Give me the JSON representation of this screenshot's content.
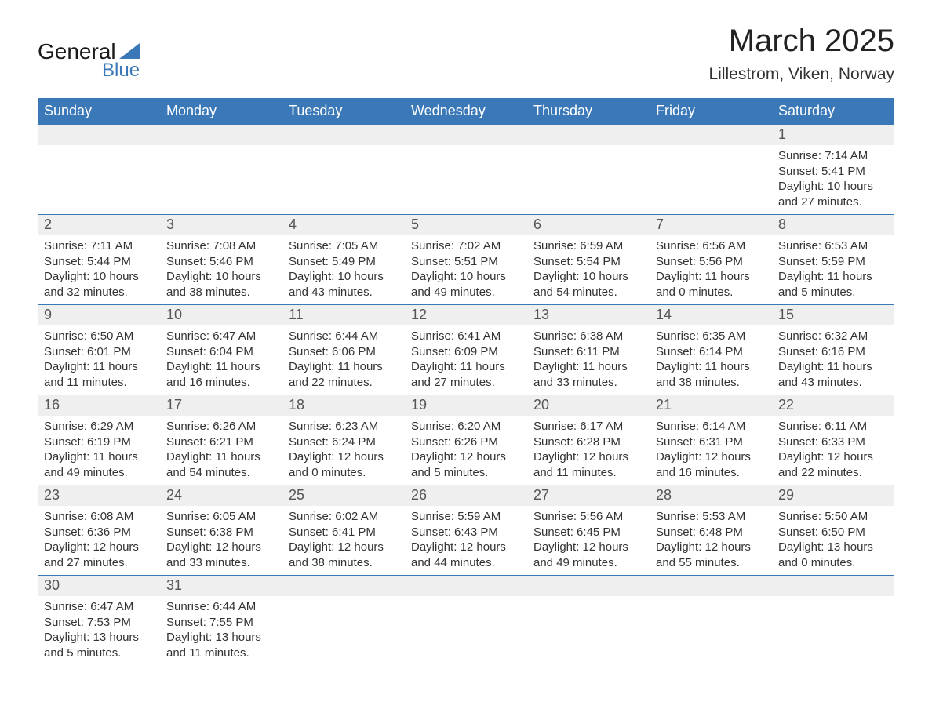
{
  "logo": {
    "text_top": "General",
    "text_bottom": "Blue",
    "accent_color": "#3a78b8"
  },
  "title": "March 2025",
  "location": "Lillestrom, Viken, Norway",
  "colors": {
    "header_bg": "#3a78b8",
    "header_text": "#ffffff",
    "daynum_bg": "#efefef",
    "daynum_text": "#555555",
    "body_text": "#333333",
    "row_border": "#3a78b8"
  },
  "weekdays": [
    "Sunday",
    "Monday",
    "Tuesday",
    "Wednesday",
    "Thursday",
    "Friday",
    "Saturday"
  ],
  "weeks": [
    [
      {
        "blank": true
      },
      {
        "blank": true
      },
      {
        "blank": true
      },
      {
        "blank": true
      },
      {
        "blank": true
      },
      {
        "blank": true
      },
      {
        "day": "1",
        "sunrise": "7:14 AM",
        "sunset": "5:41 PM",
        "daylight": "10 hours and 27 minutes."
      }
    ],
    [
      {
        "day": "2",
        "sunrise": "7:11 AM",
        "sunset": "5:44 PM",
        "daylight": "10 hours and 32 minutes."
      },
      {
        "day": "3",
        "sunrise": "7:08 AM",
        "sunset": "5:46 PM",
        "daylight": "10 hours and 38 minutes."
      },
      {
        "day": "4",
        "sunrise": "7:05 AM",
        "sunset": "5:49 PM",
        "daylight": "10 hours and 43 minutes."
      },
      {
        "day": "5",
        "sunrise": "7:02 AM",
        "sunset": "5:51 PM",
        "daylight": "10 hours and 49 minutes."
      },
      {
        "day": "6",
        "sunrise": "6:59 AM",
        "sunset": "5:54 PM",
        "daylight": "10 hours and 54 minutes."
      },
      {
        "day": "7",
        "sunrise": "6:56 AM",
        "sunset": "5:56 PM",
        "daylight": "11 hours and 0 minutes."
      },
      {
        "day": "8",
        "sunrise": "6:53 AM",
        "sunset": "5:59 PM",
        "daylight": "11 hours and 5 minutes."
      }
    ],
    [
      {
        "day": "9",
        "sunrise": "6:50 AM",
        "sunset": "6:01 PM",
        "daylight": "11 hours and 11 minutes."
      },
      {
        "day": "10",
        "sunrise": "6:47 AM",
        "sunset": "6:04 PM",
        "daylight": "11 hours and 16 minutes."
      },
      {
        "day": "11",
        "sunrise": "6:44 AM",
        "sunset": "6:06 PM",
        "daylight": "11 hours and 22 minutes."
      },
      {
        "day": "12",
        "sunrise": "6:41 AM",
        "sunset": "6:09 PM",
        "daylight": "11 hours and 27 minutes."
      },
      {
        "day": "13",
        "sunrise": "6:38 AM",
        "sunset": "6:11 PM",
        "daylight": "11 hours and 33 minutes."
      },
      {
        "day": "14",
        "sunrise": "6:35 AM",
        "sunset": "6:14 PM",
        "daylight": "11 hours and 38 minutes."
      },
      {
        "day": "15",
        "sunrise": "6:32 AM",
        "sunset": "6:16 PM",
        "daylight": "11 hours and 43 minutes."
      }
    ],
    [
      {
        "day": "16",
        "sunrise": "6:29 AM",
        "sunset": "6:19 PM",
        "daylight": "11 hours and 49 minutes."
      },
      {
        "day": "17",
        "sunrise": "6:26 AM",
        "sunset": "6:21 PM",
        "daylight": "11 hours and 54 minutes."
      },
      {
        "day": "18",
        "sunrise": "6:23 AM",
        "sunset": "6:24 PM",
        "daylight": "12 hours and 0 minutes."
      },
      {
        "day": "19",
        "sunrise": "6:20 AM",
        "sunset": "6:26 PM",
        "daylight": "12 hours and 5 minutes."
      },
      {
        "day": "20",
        "sunrise": "6:17 AM",
        "sunset": "6:28 PM",
        "daylight": "12 hours and 11 minutes."
      },
      {
        "day": "21",
        "sunrise": "6:14 AM",
        "sunset": "6:31 PM",
        "daylight": "12 hours and 16 minutes."
      },
      {
        "day": "22",
        "sunrise": "6:11 AM",
        "sunset": "6:33 PM",
        "daylight": "12 hours and 22 minutes."
      }
    ],
    [
      {
        "day": "23",
        "sunrise": "6:08 AM",
        "sunset": "6:36 PM",
        "daylight": "12 hours and 27 minutes."
      },
      {
        "day": "24",
        "sunrise": "6:05 AM",
        "sunset": "6:38 PM",
        "daylight": "12 hours and 33 minutes."
      },
      {
        "day": "25",
        "sunrise": "6:02 AM",
        "sunset": "6:41 PM",
        "daylight": "12 hours and 38 minutes."
      },
      {
        "day": "26",
        "sunrise": "5:59 AM",
        "sunset": "6:43 PM",
        "daylight": "12 hours and 44 minutes."
      },
      {
        "day": "27",
        "sunrise": "5:56 AM",
        "sunset": "6:45 PM",
        "daylight": "12 hours and 49 minutes."
      },
      {
        "day": "28",
        "sunrise": "5:53 AM",
        "sunset": "6:48 PM",
        "daylight": "12 hours and 55 minutes."
      },
      {
        "day": "29",
        "sunrise": "5:50 AM",
        "sunset": "6:50 PM",
        "daylight": "13 hours and 0 minutes."
      }
    ],
    [
      {
        "day": "30",
        "sunrise": "6:47 AM",
        "sunset": "7:53 PM",
        "daylight": "13 hours and 5 minutes."
      },
      {
        "day": "31",
        "sunrise": "6:44 AM",
        "sunset": "7:55 PM",
        "daylight": "13 hours and 11 minutes."
      },
      {
        "blank": true
      },
      {
        "blank": true
      },
      {
        "blank": true
      },
      {
        "blank": true
      },
      {
        "blank": true
      }
    ]
  ],
  "labels": {
    "sunrise": "Sunrise: ",
    "sunset": "Sunset: ",
    "daylight": "Daylight: "
  }
}
